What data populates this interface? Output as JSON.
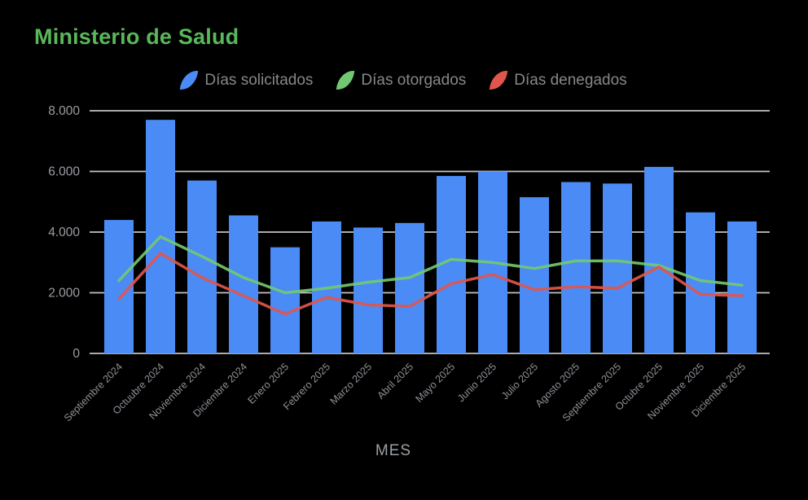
{
  "colors": {
    "background": "#000000",
    "title": "#59b85a",
    "bar_blue": "#4b8bf5",
    "line_green": "#72c872",
    "line_red": "#e0564c",
    "gridline": "#c3c3c3",
    "y_tick_text": "#9a9da2",
    "x_tick_text": "#8d9095",
    "legend_text": "#85878b",
    "x_axis_title_text": "#9aa0a6"
  },
  "legend": [
    {
      "label": "Días solicitados",
      "color": "#4b8bf5"
    },
    {
      "label": "Días otorgados",
      "color": "#72c872"
    },
    {
      "label": "Días denegados",
      "color": "#e0564c"
    }
  ],
  "chart_data": {
    "type": "bar",
    "title": "Ministerio de Salud",
    "xlabel": "MES",
    "ylabel": "",
    "ylim": [
      0,
      8000
    ],
    "grid": true,
    "legend_position": "top",
    "y_ticks": [
      {
        "value": 0,
        "label": "0"
      },
      {
        "value": 2000,
        "label": "2.000"
      },
      {
        "value": 4000,
        "label": "4.000"
      },
      {
        "value": 6000,
        "label": "6.000"
      },
      {
        "value": 8000,
        "label": "8.000"
      }
    ],
    "categories": [
      "Septiembre 2024",
      "Octuubre 2024",
      "Noviembre 2024",
      "Diciembre 2024",
      "Enero 2025",
      "Febrero 2025",
      "Marzo 2025",
      "Abril 2025",
      "Mayo 2025",
      "Junio 2025",
      "Julio 2025",
      "Agosto 2025",
      "Septiembre 2025",
      "Octubre 2025",
      "Noviembre 2025",
      "Diciembre 2025"
    ],
    "series": [
      {
        "name": "Días solicitados",
        "type": "bar",
        "color": "#4b8bf5",
        "values": [
          4400,
          7700,
          5700,
          4550,
          3500,
          4350,
          4150,
          4300,
          5850,
          6000,
          5150,
          5650,
          5600,
          6150,
          4650,
          4350
        ]
      },
      {
        "name": "Días otorgados",
        "type": "line",
        "color": "#72c872",
        "values": [
          2400,
          3850,
          3200,
          2500,
          2000,
          2150,
          2350,
          2500,
          3100,
          3000,
          2800,
          3050,
          3050,
          2900,
          2400,
          2250
        ]
      },
      {
        "name": "Días denegados",
        "type": "line",
        "color": "#e0564c",
        "values": [
          1800,
          3300,
          2500,
          1900,
          1300,
          1850,
          1600,
          1550,
          2300,
          2600,
          2100,
          2200,
          2150,
          2850,
          1950,
          1900
        ]
      }
    ]
  }
}
